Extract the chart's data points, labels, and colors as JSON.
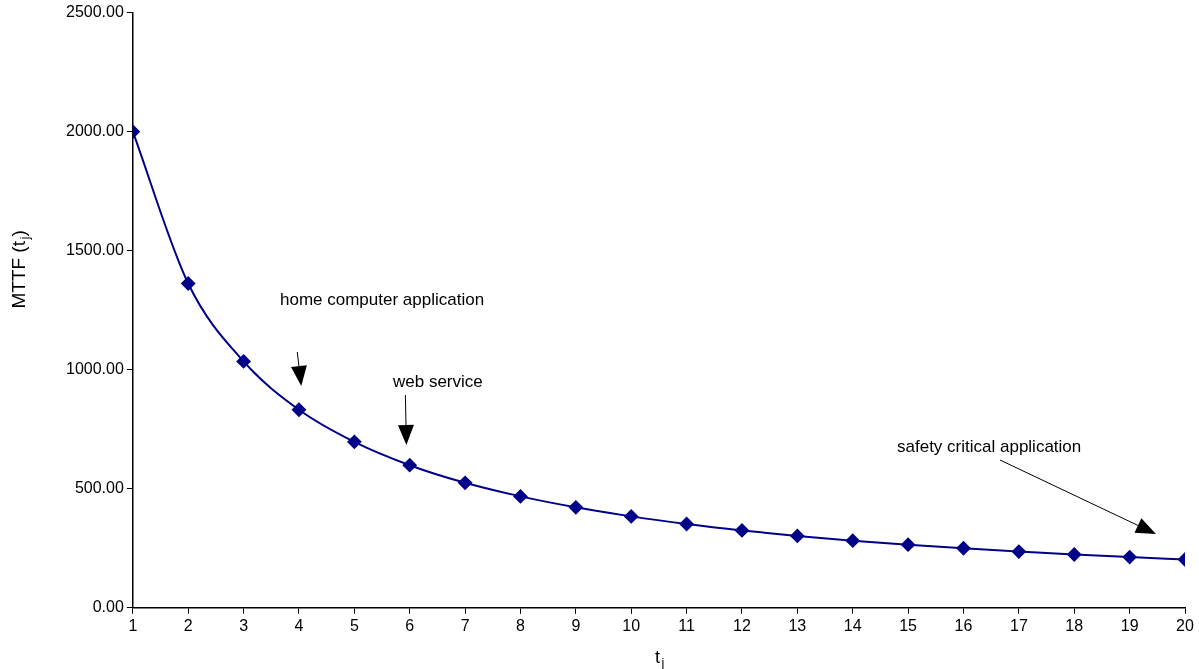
{
  "chart_data": {
    "type": "line",
    "xlabel": "t$_{j}$",
    "ylabel": "MTTF (t$_{j}$)",
    "x": [
      1,
      2,
      3,
      4,
      5,
      6,
      7,
      8,
      9,
      10,
      11,
      12,
      13,
      14,
      15,
      16,
      17,
      18,
      19,
      20
    ],
    "series": [
      {
        "color": "#000088",
        "values": [
          2000,
          1362,
          1035,
          832,
          697,
          599,
          525,
          468,
          422,
          384,
          352,
          325,
          302,
          282,
          265,
          250,
          236,
          224,
          213,
          203
        ]
      }
    ],
    "xlim": [
      1,
      20
    ],
    "xticks": [
      1,
      2,
      3,
      4,
      5,
      6,
      7,
      8,
      9,
      10,
      11,
      12,
      13,
      14,
      15,
      16,
      17,
      18,
      19,
      20
    ],
    "ylim": [
      0,
      2500
    ],
    "yticks": [
      {
        "value": 0,
        "label": "0.00"
      },
      {
        "value": 500,
        "label": "500.00"
      },
      {
        "value": 1000,
        "label": "1000.00"
      },
      {
        "value": 1500,
        "label": "1500.00"
      },
      {
        "value": 2000,
        "label": "2000.00"
      },
      {
        "value": 2500,
        "label": "2500.00"
      }
    ],
    "grid": false,
    "legend": false,
    "marker": "diamond",
    "line_style": "solid",
    "annotations": [
      "home computer application",
      "web service",
      "safety critical application"
    ]
  }
}
